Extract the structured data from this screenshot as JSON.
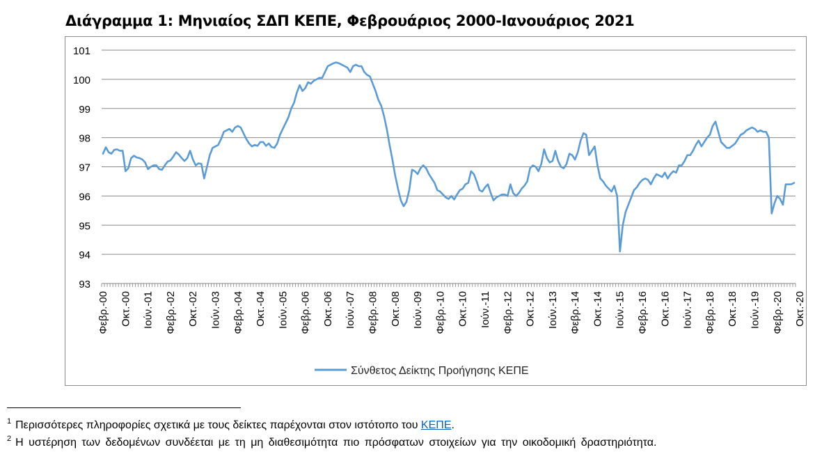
{
  "figure": {
    "title": "Διάγραμμα 1: Μηνιαίος ΣΔΠ ΚΕΠΕ, Φεβρουάριος 2000-Ιανουάριος 2021"
  },
  "footnotes": [
    {
      "mark": "1",
      "text": "Περισσότερες πληροφορίες σχετικά με τους δείκτες παρέχονται στον ιστότοπο του ",
      "link": "ΚΕΠΕ",
      "after": "."
    },
    {
      "mark": "2",
      "text": "Η υστέρηση των δεδομένων συνδέεται με τη μη διαθεσιμότητα πιο πρόσφατων στοιχείων για την οικοδομική δραστηριότητα."
    }
  ],
  "chart_data": {
    "type": "line",
    "title": "",
    "xlabel": "",
    "ylabel": "",
    "ylim": [
      93,
      101
    ],
    "yticks": [
      "93",
      "94",
      "95",
      "96",
      "97",
      "98",
      "99",
      "100",
      "101"
    ],
    "grid": true,
    "legend_position": "bottom",
    "line_color": "#5b9bd5",
    "x_start": "2000-02",
    "x_end": "2021-01",
    "xtick_labels": [
      "Φεβρ.-00",
      "Οκτ.-00",
      "Ιούν.-01",
      "Φεβρ.-02",
      "Οκτ.-02",
      "Ιούν.-03",
      "Φεβρ.-04",
      "Οκτ.-04",
      "Ιούν.-05",
      "Φεβρ.-06",
      "Οκτ.-06",
      "Ιούν.-07",
      "Φεβρ.-08",
      "Οκτ.-08",
      "Ιούν.-09",
      "Φεβρ.-10",
      "Οκτ.-10",
      "Ιούν.-11",
      "Φεβρ.-12",
      "Οκτ.-12",
      "Ιούν.-13",
      "Φεβρ.-14",
      "Οκτ.-14",
      "Ιούν.-15",
      "Φεβρ.-16",
      "Οκτ.-16",
      "Ιούν.-17",
      "Φεβρ.-18",
      "Οκτ.-18",
      "Ιούν.-19",
      "Φεβρ.-20",
      "Οκτ.-20"
    ],
    "series": [
      {
        "name": "Σύνθετος Δείκτης Προήγησης ΚΕΠΕ",
        "values": [
          97.45,
          97.67,
          97.5,
          97.45,
          97.58,
          97.6,
          97.55,
          97.55,
          96.85,
          96.95,
          97.3,
          97.38,
          97.32,
          97.3,
          97.25,
          97.15,
          96.92,
          97.0,
          97.05,
          97.05,
          96.92,
          96.9,
          97.05,
          97.18,
          97.22,
          97.35,
          97.5,
          97.42,
          97.3,
          97.2,
          97.3,
          97.55,
          97.25,
          97.05,
          97.12,
          97.1,
          96.6,
          97.0,
          97.4,
          97.65,
          97.7,
          97.75,
          97.95,
          98.2,
          98.25,
          98.3,
          98.2,
          98.35,
          98.4,
          98.35,
          98.15,
          97.95,
          97.8,
          97.7,
          97.75,
          97.72,
          97.85,
          97.85,
          97.72,
          97.8,
          97.68,
          97.65,
          97.8,
          98.1,
          98.3,
          98.5,
          98.7,
          99.0,
          99.2,
          99.55,
          99.8,
          99.6,
          99.7,
          99.9,
          99.85,
          99.95,
          100.0,
          100.05,
          100.05,
          100.25,
          100.45,
          100.5,
          100.55,
          100.58,
          100.55,
          100.5,
          100.45,
          100.4,
          100.25,
          100.45,
          100.5,
          100.45,
          100.45,
          100.25,
          100.15,
          100.1,
          99.85,
          99.6,
          99.3,
          99.1,
          98.75,
          98.3,
          97.75,
          97.25,
          96.7,
          96.25,
          95.85,
          95.65,
          95.8,
          96.2,
          96.9,
          96.85,
          96.75,
          96.95,
          97.05,
          96.95,
          96.75,
          96.6,
          96.45,
          96.2,
          96.15,
          96.05,
          95.95,
          95.9,
          96.0,
          95.88,
          96.05,
          96.2,
          96.25,
          96.4,
          96.45,
          96.85,
          96.75,
          96.5,
          96.2,
          96.15,
          96.3,
          96.4,
          96.1,
          95.85,
          95.95,
          96.0,
          96.05,
          96.05,
          96.0,
          96.4,
          96.1,
          96.0,
          96.1,
          96.25,
          96.35,
          96.5,
          96.95,
          97.05,
          97.0,
          96.85,
          97.1,
          97.6,
          97.3,
          97.15,
          97.2,
          97.55,
          97.2,
          97.0,
          96.95,
          97.1,
          97.45,
          97.4,
          97.25,
          97.5,
          97.9,
          98.15,
          98.1,
          97.4,
          97.55,
          97.7,
          97.05,
          96.6,
          96.5,
          96.35,
          96.25,
          96.15,
          96.35,
          96.0,
          94.1,
          95.0,
          95.45,
          95.7,
          95.95,
          96.2,
          96.3,
          96.45,
          96.55,
          96.6,
          96.55,
          96.4,
          96.6,
          96.75,
          96.7,
          96.65,
          96.8,
          96.6,
          96.75,
          96.85,
          96.8,
          97.05,
          97.05,
          97.2,
          97.4,
          97.4,
          97.55,
          97.75,
          97.9,
          97.7,
          97.85,
          98.0,
          98.1,
          98.4,
          98.55,
          98.2,
          97.85,
          97.75,
          97.65,
          97.65,
          97.72,
          97.8,
          97.95,
          98.1,
          98.15,
          98.25,
          98.3,
          98.35,
          98.3,
          98.2,
          98.25,
          98.2,
          98.2,
          98.0,
          95.4,
          95.75,
          96.0,
          95.9,
          95.7,
          96.4,
          96.4,
          96.4,
          96.45
        ]
      }
    ]
  }
}
